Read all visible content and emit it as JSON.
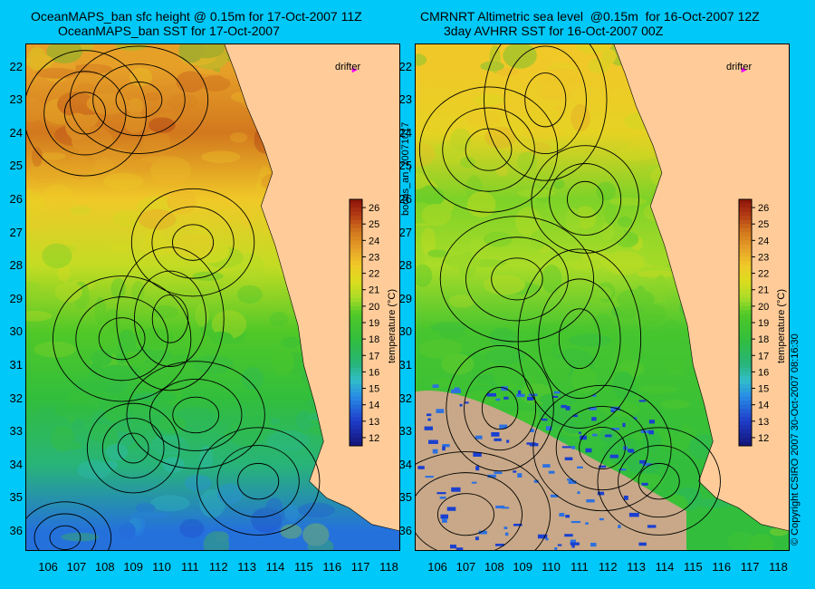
{
  "titles": {
    "left_line1": "OceanMAPS_ban sfc height @ 0.15m for 17-Oct-2007 11Z",
    "left_line2": "OceanMAPS_ban SST for 17-Oct-2007",
    "right_line1": "CMRNRT Altimetric sea level  @0.15m  for 16-Oct-2007 12Z",
    "right_line2": "3day AVHRR SST for 16-Oct-2007 00Z"
  },
  "side_texts": {
    "middle": "bodas_an_20071017",
    "right": "© Copyright CSIRO 2007   30-Oct-2007 08:16:30"
  },
  "drifter_label": "drifter",
  "colorbar": {
    "label": "temperature (°C)",
    "ticks": [
      "12",
      "13",
      "14",
      "15",
      "16",
      "17",
      "18",
      "19",
      "20",
      "21",
      "22",
      "23",
      "24",
      "25",
      "26"
    ]
  },
  "colors": {
    "background": "#00c8f8",
    "land": "#ffcc99",
    "drifter_marker": "#ff00ff"
  },
  "chart_data": [
    {
      "type": "heatmap",
      "title": "OceanMAPS_ban sfc height @ 0.15m for 17-Oct-2007 11Z / OceanMAPS_ban SST for 17-Oct-2007",
      "xlabel": "",
      "ylabel": "",
      "xlim": [
        105.2,
        118.4
      ],
      "ylim": [
        21.3,
        36.6
      ],
      "y_inverted": true,
      "x_ticks": [
        106,
        107,
        108,
        109,
        110,
        111,
        112,
        113,
        114,
        115,
        116,
        117,
        118
      ],
      "y_ticks": [
        22,
        23,
        24,
        25,
        26,
        27,
        28,
        29,
        30,
        31,
        32,
        33,
        34,
        35,
        36
      ],
      "colorbar_range": [
        11.5,
        26.5
      ],
      "sst_band_by_latitude": [
        {
          "lat": 22,
          "sst": 23.5
        },
        {
          "lat": 24,
          "sst": 24.5
        },
        {
          "lat": 26,
          "sst": 22.5
        },
        {
          "lat": 28,
          "sst": 21
        },
        {
          "lat": 30,
          "sst": 19.5
        },
        {
          "lat": 32,
          "sst": 18
        },
        {
          "lat": 34,
          "sst": 16.5
        },
        {
          "lat": 36,
          "sst": 14
        }
      ],
      "drifter": {
        "lon": 116.7,
        "lat": 22.1
      }
    },
    {
      "type": "heatmap",
      "title": "CMRNRT Altimetric sea level  @0.15m  for 16-Oct-2007 12Z / 3day AVHRR SST for 16-Oct-2007 00Z",
      "xlabel": "",
      "ylabel": "",
      "xlim": [
        105.2,
        118.4
      ],
      "ylim": [
        21.3,
        36.6
      ],
      "y_inverted": true,
      "x_ticks": [
        106,
        107,
        108,
        109,
        110,
        111,
        112,
        113,
        114,
        115,
        116,
        117,
        118
      ],
      "y_ticks": [
        22,
        23,
        24,
        25,
        26,
        27,
        28,
        29,
        30,
        31,
        32,
        33,
        34,
        35,
        36
      ],
      "colorbar_range": [
        11.5,
        26.5
      ],
      "sst_band_by_latitude": [
        {
          "lat": 22,
          "sst": 22.5
        },
        {
          "lat": 24,
          "sst": 22
        },
        {
          "lat": 26,
          "sst": 20
        },
        {
          "lat": 28,
          "sst": 20.5
        },
        {
          "lat": 30,
          "sst": 19
        },
        {
          "lat": 32,
          "sst": 18.5
        },
        {
          "lat": 34,
          "sst": 18
        },
        {
          "lat": 36,
          "sst": 18
        }
      ],
      "drifter": {
        "lon": 116.7,
        "lat": 22.1
      }
    }
  ]
}
